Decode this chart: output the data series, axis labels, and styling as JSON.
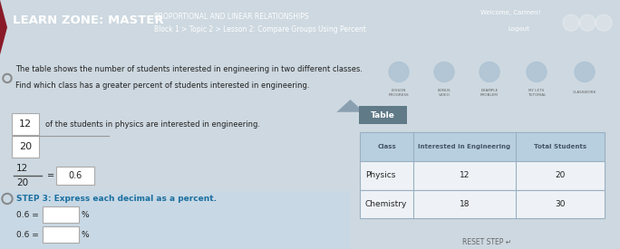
{
  "header_bg": "#c0404a",
  "header_title": "LEARN ZONE: MASTER",
  "header_subtitle1": "PROPORTIONAL AND LINEAR RELATIONSHIPS",
  "header_subtitle2": "Block 1 > Topic 2 > Lesson 2: Compare Groups Using Percent",
  "header_welcome": "Welcome, Carmen!",
  "header_logout": "Logout",
  "body_bg": "#cdd8e0",
  "left_bg": "#f5f8fa",
  "right_bg": "#cdd8e0",
  "question_text1": "The table shows the number of students interested in engineering in two different classes.",
  "question_text2": "Find which class has a greater percent of students interested in engineering.",
  "step_box1_val": "12",
  "step_text1": "of the students in physics are interested in engineering.",
  "step_box2_val": "20",
  "fraction_num": "12",
  "fraction_den": "20",
  "fraction_result": "0.6",
  "step3_text": "STEP 3: Express each decimal as a percent.",
  "step3_eq1": "0.6 =",
  "step3_eq2": "0.6 =",
  "step3_pct": "%",
  "table_label": "Table",
  "table_header_col1": "Class",
  "table_header_col2": "Interested in Engineering",
  "table_header_col3": "Total Students",
  "table_row1": [
    "Physics",
    "12",
    "20"
  ],
  "table_row2": [
    "Chemistry",
    "18",
    "30"
  ],
  "reset_text": "RESET STEP ↵",
  "table_header_bg": "#b8cfe0",
  "table_row_bg": "#eef2f6",
  "table_border": "#9ab0c0",
  "box_border": "#aaaaaa",
  "box_bg": "#ffffff",
  "text_dark": "#222222",
  "text_medium": "#666666",
  "step3_color": "#1a6fa0",
  "divider_color": "#8aa0b0",
  "bullet_color": "#555555",
  "icon_circle_colors": [
    "#c8d8e8",
    "#c8d8e8",
    "#c8d8e8",
    "#c8d8e8",
    "#c8d8e8"
  ]
}
